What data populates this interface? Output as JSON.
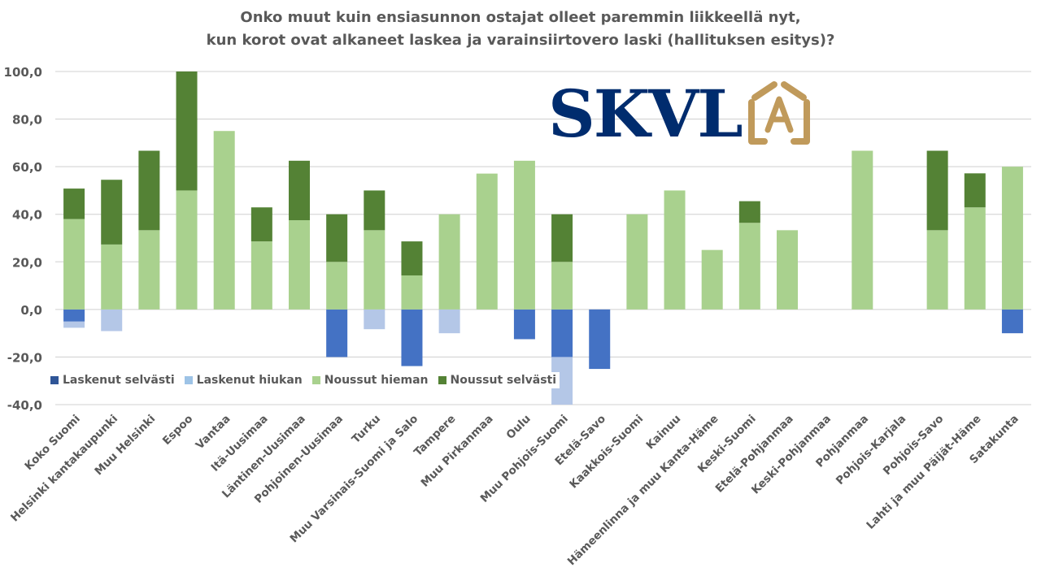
{
  "title_lines": [
    "Onko muut kuin ensiasunnon ostajat olleet paremmin liikkeellä nyt,",
    "kun korot ovat alkaneet laskea ja varainsiirtovero laski (hallituksen esitys)?"
  ],
  "logo": {
    "text": "SKVL",
    "icon": "house-a-icon",
    "text_color": "#002c6e",
    "icon_color": "#c09a5b"
  },
  "chart_data": {
    "type": "bar",
    "stacked": true,
    "title": "Onko muut kuin ensiasunnon ostajat olleet paremmin liikkeellä nyt, kun korot ovat alkaneet laskea ja varainsiirtovero laski (hallituksen esitys)?",
    "xlabel": "",
    "ylabel": "",
    "ylim": [
      -40,
      100
    ],
    "yticks": [
      -40,
      -20,
      0,
      20,
      40,
      60,
      80,
      100
    ],
    "ytick_labels": [
      "-40,0",
      "-20,0",
      "0,0",
      "20,0",
      "40,0",
      "60,0",
      "80,0",
      "100,0"
    ],
    "grid": true,
    "legend_position": "bottom-left",
    "categories": [
      "Koko Suomi",
      "Helsinki kantakaupunki",
      "Muu Helsinki",
      "Espoo",
      "Vantaa",
      "Itä-Uusimaa",
      "Läntinen-Uusimaa",
      "Pohjoinen-Uusimaa",
      "Turku",
      "Muu Varsinais-Suomi ja Salo",
      "Tampere",
      "Muu Pirkanmaa",
      "Oulu",
      "Muu Pohjois-Suomi",
      "Etelä-Savo",
      "Kaakkois-Suomi",
      "Kainuu",
      "Hämeenlinna ja muu Kanta-Häme",
      "Keski-Suomi",
      "Etelä-Pohjanmaa",
      "Keski-Pohjanmaa",
      "Pohjanmaa",
      "Pohjois-Karjala",
      "Pohjois-Savo",
      "Lahti ja muu Päijät-Häme",
      "Satakunta"
    ],
    "series": [
      {
        "name": "Laskenut selvästi",
        "color": "#4472c4",
        "direction": "down",
        "values": [
          -5.1,
          0,
          0,
          0,
          0,
          0,
          0,
          -20,
          0,
          -23.8,
          0,
          0,
          -12.5,
          -20,
          -25,
          0,
          0,
          0,
          0,
          0,
          0,
          0,
          0,
          0,
          0,
          -10
        ]
      },
      {
        "name": "Laskenut hiukan",
        "color": "#b4c7e7",
        "direction": "down",
        "values": [
          -2.6,
          -9.1,
          0,
          0,
          0,
          0,
          0,
          0,
          -8.3,
          0,
          -10,
          0,
          0,
          -20,
          0,
          0,
          0,
          0,
          0,
          0,
          0,
          0,
          0,
          0,
          0,
          0
        ]
      },
      {
        "name": "Noussut hieman",
        "color": "#a9d18e",
        "direction": "up",
        "values": [
          38,
          27.3,
          33.3,
          50,
          75,
          28.6,
          37.5,
          20,
          33.3,
          14.3,
          40,
          57.1,
          62.5,
          20,
          0,
          40,
          50,
          25,
          36.4,
          33.3,
          0,
          66.7,
          0,
          33.3,
          42.9,
          60
        ]
      },
      {
        "name": "Noussut selvästi",
        "color": "#548235",
        "direction": "up",
        "values": [
          12.8,
          27.2,
          33.4,
          50,
          0,
          14.3,
          25,
          20,
          16.7,
          14.3,
          0,
          0,
          0,
          20,
          0,
          0,
          0,
          0,
          9.1,
          0,
          0,
          0,
          0,
          33.4,
          14.3,
          0
        ]
      }
    ]
  }
}
